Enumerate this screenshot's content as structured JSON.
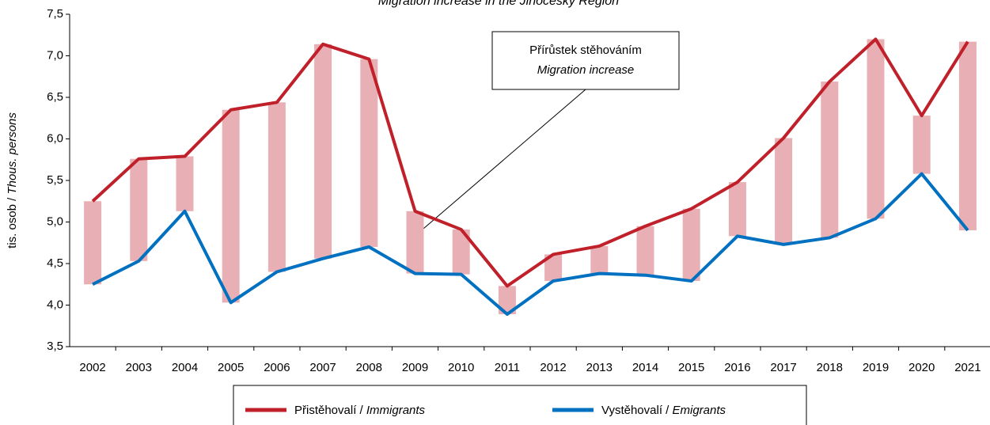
{
  "chart_data": {
    "type": "line",
    "title": "Migration increase in the Jihočeský Region",
    "y_label": "tis. osob / Thous. persons",
    "categories": [
      "2002",
      "2003",
      "2004",
      "2005",
      "2006",
      "2007",
      "2008",
      "2009",
      "2010",
      "2011",
      "2012",
      "2013",
      "2014",
      "2015",
      "2016",
      "2017",
      "2018",
      "2019",
      "2020",
      "2021"
    ],
    "series": [
      {
        "name": "Přistěhovalí / Immigrants",
        "color": "#c0202a",
        "values": [
          5.25,
          5.76,
          5.79,
          6.35,
          6.44,
          7.14,
          6.96,
          5.13,
          4.91,
          4.23,
          4.61,
          4.71,
          4.95,
          5.16,
          5.48,
          6.01,
          6.69,
          7.2,
          6.28,
          7.17
        ]
      },
      {
        "name": "Vystěhovalí / Emigrants",
        "color": "#0070c0",
        "values": [
          4.25,
          4.53,
          5.13,
          4.03,
          4.4,
          4.56,
          4.7,
          4.38,
          4.37,
          3.89,
          4.29,
          4.38,
          4.36,
          4.29,
          4.83,
          4.73,
          4.81,
          5.04,
          5.58,
          4.9
        ]
      }
    ],
    "range_bars": {
      "color": "#e8b0b4"
    },
    "annotation": [
      "Přírůstek stěhováním",
      "Migration increase"
    ],
    "ylim": [
      3.5,
      7.5
    ],
    "yticks": [
      {
        "value": 3.5,
        "label": "3,5"
      },
      {
        "value": 4,
        "label": "4,0"
      },
      {
        "value": 4.5,
        "label": "4,5"
      },
      {
        "value": 5,
        "label": "5,0"
      },
      {
        "value": 5.5,
        "label": "5,5"
      },
      {
        "value": 6,
        "label": "6,0"
      },
      {
        "value": 6.5,
        "label": "6,5"
      },
      {
        "value": 7,
        "label": "7,0"
      },
      {
        "value": 7.5,
        "label": "7,5"
      }
    ],
    "grid": false
  }
}
